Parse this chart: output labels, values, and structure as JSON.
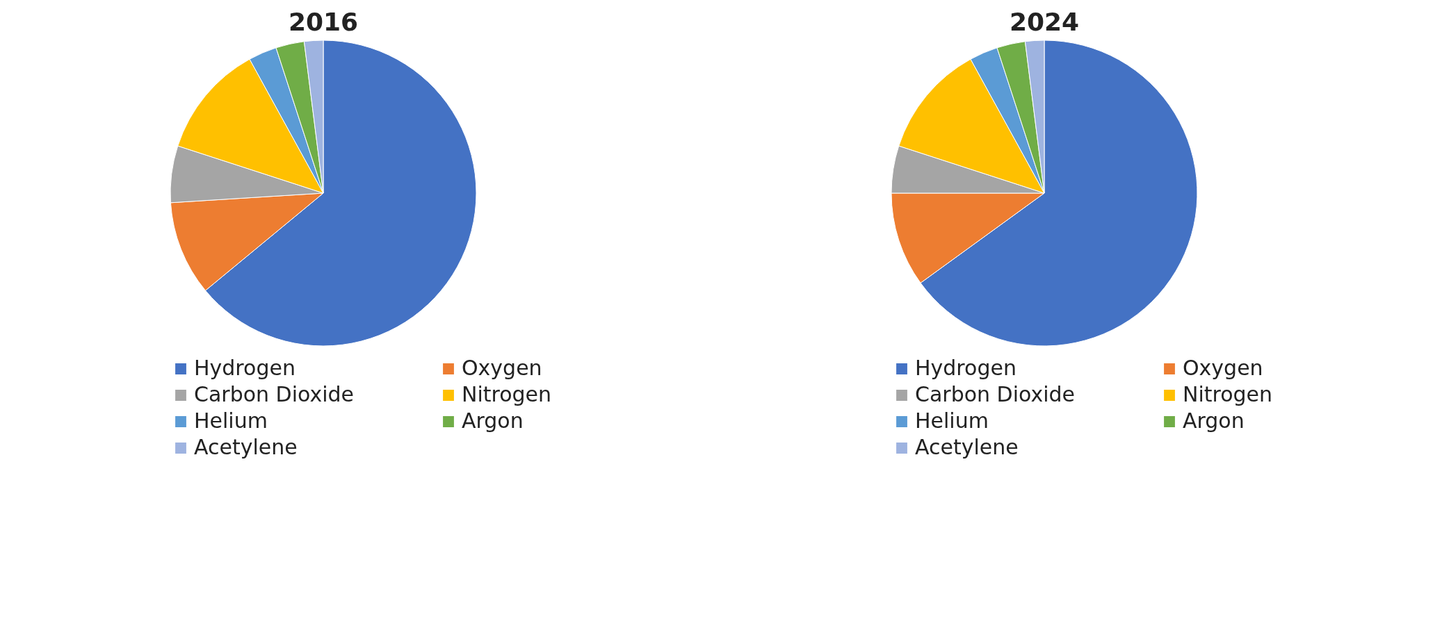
{
  "chart_data": [
    {
      "type": "pie",
      "title": "2016",
      "categories": [
        "Hydrogen",
        "Oxygen",
        "Carbon Dioxide",
        "Nitrogen",
        "Helium",
        "Argon",
        "Acetylene"
      ],
      "values": [
        64,
        10,
        6,
        12,
        3,
        3,
        2
      ],
      "colors": [
        "#4472c4",
        "#ed7d31",
        "#a5a5a5",
        "#ffc000",
        "#5b9bd5",
        "#70ad47",
        "#9eb3e0"
      ],
      "legend": "bottom"
    },
    {
      "type": "pie",
      "title": "2024",
      "categories": [
        "Hydrogen",
        "Oxygen",
        "Carbon Dioxide",
        "Nitrogen",
        "Helium",
        "Argon",
        "Acetylene"
      ],
      "values": [
        65,
        10,
        5,
        12,
        3,
        3,
        2
      ],
      "colors": [
        "#4472c4",
        "#ed7d31",
        "#a5a5a5",
        "#ffc000",
        "#5b9bd5",
        "#70ad47",
        "#9eb3e0"
      ],
      "legend": "bottom"
    }
  ]
}
